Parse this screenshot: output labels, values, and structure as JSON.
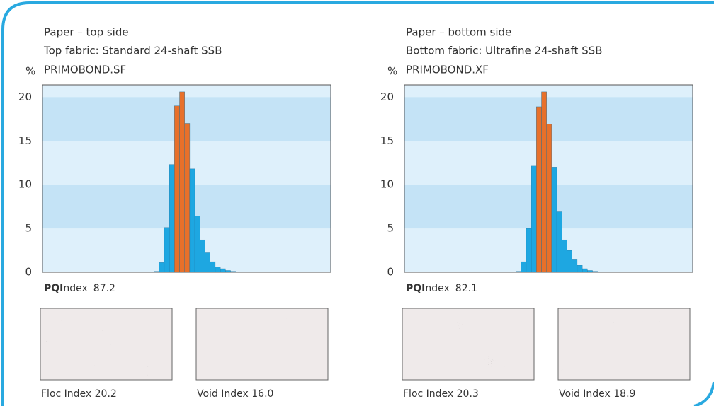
{
  "chart_data": [
    {
      "type": "bar",
      "title": "Paper – top side",
      "subtitle": "Top fabric: Standard 24-shaft SSB",
      "product": "PRIMOBOND.SF",
      "y_label": "%",
      "categories": [
        null,
        null,
        null,
        null,
        null,
        null,
        null,
        null,
        null,
        null,
        null,
        null,
        null,
        null,
        null,
        null
      ],
      "values": [
        0.1,
        1.1,
        5.1,
        12.3,
        19.0,
        20.6,
        17.0,
        11.8,
        6.4,
        3.7,
        2.3,
        1.2,
        0.6,
        0.4,
        0.2,
        0.1
      ],
      "colors": [
        "#1ea7e1",
        "#1ea7e1",
        "#1ea7e1",
        "#1ea7e1",
        "#e8702a",
        "#e8702a",
        "#e8702a",
        "#1ea7e1",
        "#1ea7e1",
        "#1ea7e1",
        "#1ea7e1",
        "#1ea7e1",
        "#1ea7e1",
        "#1ea7e1",
        "#1ea7e1",
        "#1ea7e1"
      ],
      "ylim": [
        0,
        21.4
      ],
      "yticks": [
        0,
        5,
        10,
        15,
        20
      ],
      "pqi_bold": "PQI",
      "pqi_rest": "ndex",
      "pqi_value": "87.2",
      "floc_caption": "Floc Index 20.2",
      "void_caption": "Void Index 16.0"
    },
    {
      "type": "bar",
      "title": "Paper – bottom side",
      "subtitle": "Bottom fabric: Ultrafine 24-shaft SSB",
      "product": "PRIMOBOND.XF",
      "y_label": "%",
      "categories": [
        null,
        null,
        null,
        null,
        null,
        null,
        null,
        null,
        null,
        null,
        null,
        null,
        null,
        null,
        null,
        null
      ],
      "values": [
        0.1,
        1.2,
        5.0,
        12.2,
        18.9,
        20.6,
        16.9,
        12.0,
        6.9,
        3.7,
        2.5,
        1.5,
        0.8,
        0.4,
        0.2,
        0.1
      ],
      "colors": [
        "#1ea7e1",
        "#1ea7e1",
        "#1ea7e1",
        "#1ea7e1",
        "#e8702a",
        "#e8702a",
        "#e8702a",
        "#1ea7e1",
        "#1ea7e1",
        "#1ea7e1",
        "#1ea7e1",
        "#1ea7e1",
        "#1ea7e1",
        "#1ea7e1",
        "#1ea7e1",
        "#1ea7e1"
      ],
      "ylim": [
        0,
        21.4
      ],
      "yticks": [
        0,
        5,
        10,
        15,
        20
      ],
      "pqi_bold": "PQI",
      "pqi_rest": "ndex",
      "pqi_value": "82.1",
      "floc_caption": "Floc Index 20.3",
      "void_caption": "Void Index 18.9"
    }
  ]
}
